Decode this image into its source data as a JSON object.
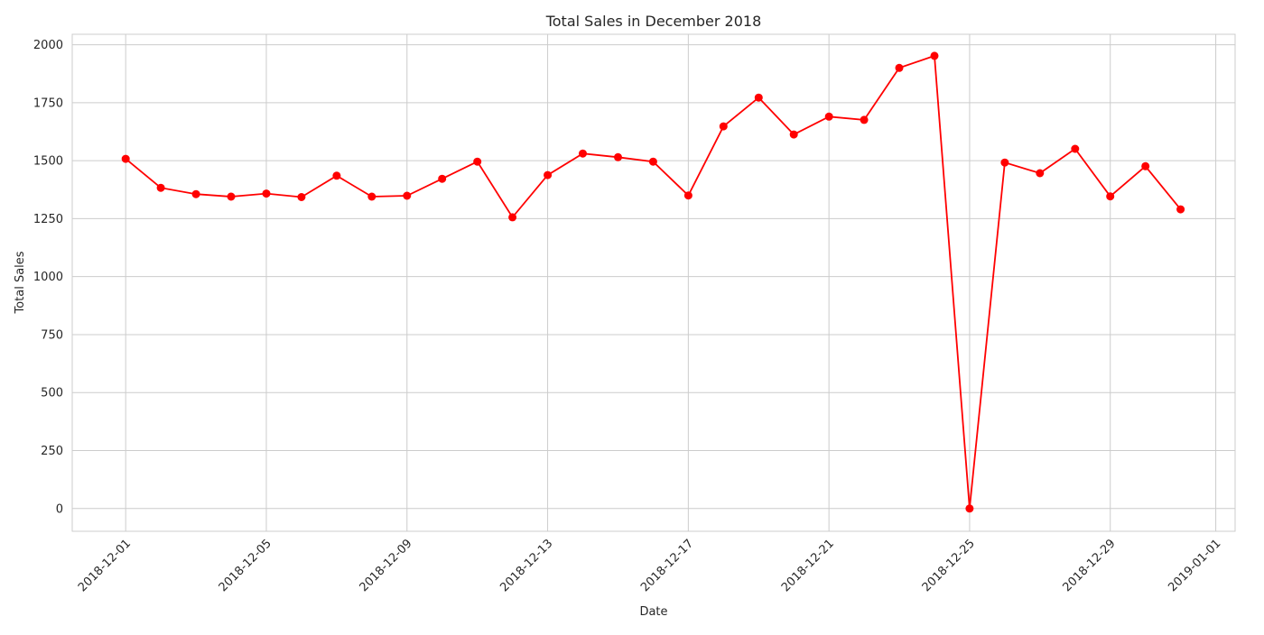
{
  "chart_data": {
    "type": "line",
    "title": "Total Sales in December 2018",
    "xlabel": "Date",
    "ylabel": "Total Sales",
    "x_ticks": [
      "2018-12-01",
      "2018-12-05",
      "2018-12-09",
      "2018-12-13",
      "2018-12-17",
      "2018-12-21",
      "2018-12-25",
      "2018-12-29",
      "2019-01-01"
    ],
    "y_ticks": [
      0,
      250,
      500,
      750,
      1000,
      1250,
      1500,
      1750,
      2000
    ],
    "xlim": [
      "2018-11-29",
      "2019-01-01"
    ],
    "ylim": [
      -98,
      2045
    ],
    "grid": true,
    "color": "#ff0000",
    "x": [
      "2018-12-01",
      "2018-12-02",
      "2018-12-03",
      "2018-12-04",
      "2018-12-05",
      "2018-12-06",
      "2018-12-07",
      "2018-12-08",
      "2018-12-09",
      "2018-12-10",
      "2018-12-11",
      "2018-12-12",
      "2018-12-13",
      "2018-12-14",
      "2018-12-15",
      "2018-12-16",
      "2018-12-17",
      "2018-12-18",
      "2018-12-19",
      "2018-12-20",
      "2018-12-21",
      "2018-12-22",
      "2018-12-23",
      "2018-12-24",
      "2018-12-25",
      "2018-12-26",
      "2018-12-27",
      "2018-12-28",
      "2018-12-29",
      "2018-12-30",
      "2018-12-31"
    ],
    "values": [
      1508,
      1383,
      1356,
      1345,
      1358,
      1343,
      1435,
      1345,
      1349,
      1422,
      1496,
      1256,
      1438,
      1531,
      1515,
      1496,
      1350,
      1648,
      1772,
      1613,
      1690,
      1676,
      1900,
      1952,
      0,
      1492,
      1446,
      1551,
      1346,
      1476,
      1290
    ]
  }
}
